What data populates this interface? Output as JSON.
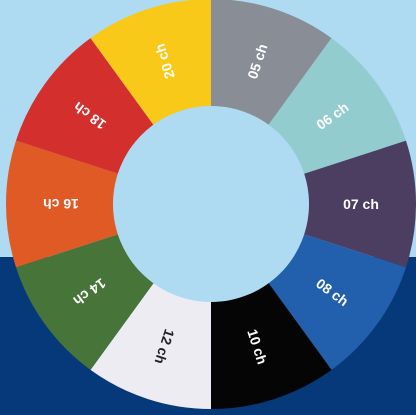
{
  "background": {
    "top_color": "#aedbf2",
    "bottom_color": "#06397a"
  },
  "wheel": {
    "hub_color": "#aedbf2",
    "segments": [
      {
        "label": "05 ch",
        "color": "#888d96",
        "text_color": "#ffffff"
      },
      {
        "label": "06 ch",
        "color": "#92cccf",
        "text_color": "#ffffff"
      },
      {
        "label": "07 ch",
        "color": "#4b3e61",
        "text_color": "#ffffff"
      },
      {
        "label": "08 ch",
        "color": "#225fac",
        "text_color": "#ffffff"
      },
      {
        "label": "10 ch",
        "color": "#050505",
        "text_color": "#ffffff"
      },
      {
        "label": "12 ch",
        "color": "#edecf3",
        "text_color": "#222222"
      },
      {
        "label": "14 ch",
        "color": "#477539",
        "text_color": "#ffffff"
      },
      {
        "label": "16 ch",
        "color": "#e05a26",
        "text_color": "#ffffff"
      },
      {
        "label": "18 ch",
        "color": "#d22f2d",
        "text_color": "#ffffff"
      },
      {
        "label": "20 ch",
        "color": "#f9c91a",
        "text_color": "#ffffff"
      }
    ]
  }
}
